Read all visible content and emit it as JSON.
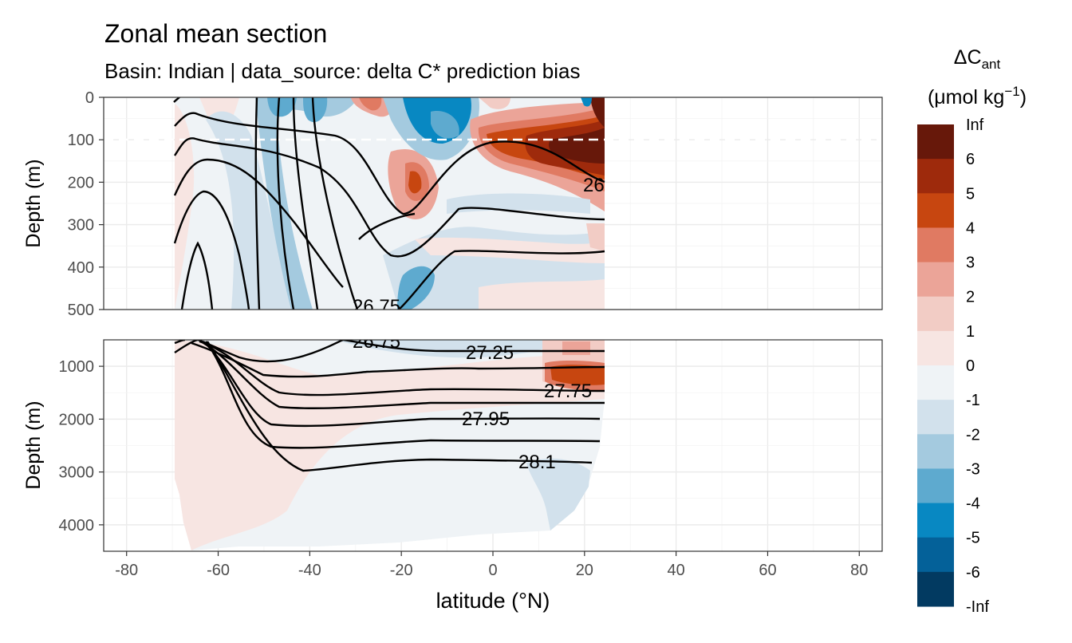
{
  "chart_data": {
    "type": "heatmap",
    "title": "Zonal mean section",
    "subtitle": "Basin: Indian | data_source: delta C* prediction bias",
    "xlabel": "latitude (°N)",
    "ylabel": "Depth (m)",
    "xlim": [
      -85,
      85
    ],
    "xticks": [
      "-80",
      "-60",
      "-40",
      "-20",
      "0",
      "20",
      "40",
      "60",
      "80"
    ],
    "panels": [
      {
        "ylim": [
          0,
          500
        ],
        "yticks": [
          "0",
          "100",
          "200",
          "300",
          "400",
          "500"
        ],
        "reference_line_depth": 100
      },
      {
        "ylim": [
          500,
          4500
        ],
        "yticks": [
          "1000",
          "2000",
          "3000",
          "4000"
        ]
      }
    ],
    "data_lat_range": [
      -70,
      24
    ],
    "legend": {
      "title": "ΔC",
      "title_sub": "ant",
      "units": "(μmol kg",
      "units_sup": "−1",
      "units_end": ")",
      "placement": "right",
      "breaks": [
        "Inf",
        "6",
        "5",
        "4",
        "3",
        "2",
        "1",
        "0",
        "-1",
        "-2",
        "-3",
        "-4",
        "-5",
        "-6",
        "-Inf"
      ],
      "colors": [
        "#67180A",
        "#9E2A0C",
        "#C74610",
        "#E07A62",
        "#EBA498",
        "#F2CCC5",
        "#F7E5E2",
        "#EFF3F6",
        "#D2E1EC",
        "#A4CADF",
        "#5EAACF",
        "#0888C2",
        "#046199",
        "#023A61"
      ]
    },
    "contour_labels": [
      "26",
      "26.75",
      "27.25",
      "27.75",
      "27.95",
      "28.1"
    ]
  }
}
